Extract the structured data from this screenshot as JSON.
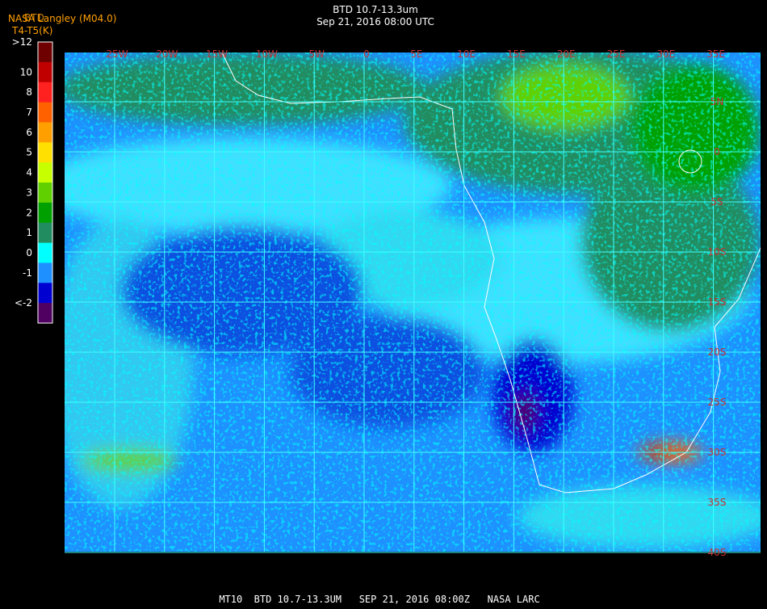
{
  "header": {
    "title": "BTD 10.7-13.3um",
    "subtitle": "Sep 21, 2016 08:00 UTC",
    "source": "NASA Langley (M04.0)",
    "product": "BTD",
    "units": "T4-T5(K)"
  },
  "legend": {
    "labels": [
      ">12",
      "10",
      "8",
      "7",
      "6",
      "5",
      "4",
      "3",
      "2",
      "1",
      "0",
      "-1",
      "<-2"
    ],
    "colors": [
      "#6e0000",
      "#c00000",
      "#ff2020",
      "#ff6000",
      "#ffa000",
      "#ffe000",
      "#c8ff00",
      "#60d000",
      "#00a000",
      "#208c60",
      "#00ffff",
      "#1e90ff",
      "#0000d0",
      "#500060"
    ]
  },
  "map": {
    "lon_labels": [
      "25W",
      "20W",
      "15W",
      "10W",
      "5W",
      "0",
      "5E",
      "10E",
      "15E",
      "20E",
      "25E",
      "30E",
      "35E"
    ],
    "lat_labels": [
      "5N",
      "0",
      "5S",
      "10S",
      "15S",
      "20S",
      "25S",
      "30S",
      "35S",
      "40S"
    ]
  },
  "footer": {
    "text": "MT10  BTD 10.7-13.3UM   SEP 21, 2016 08:00Z   NASA LARC"
  }
}
